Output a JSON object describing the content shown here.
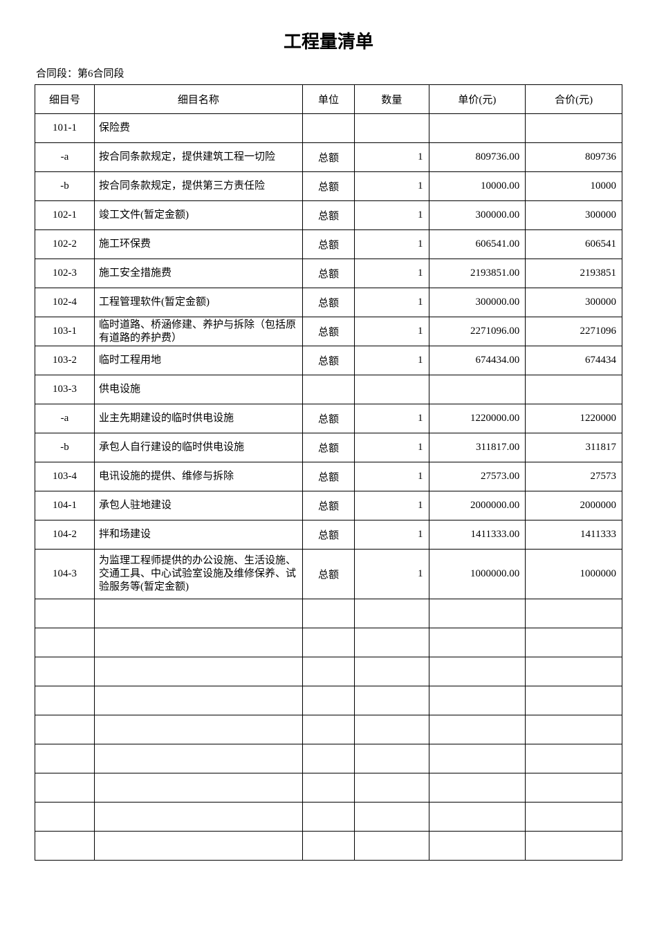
{
  "title": "工程量清单",
  "subtitle": "合同段：第6合同段",
  "headers": {
    "id": "细目号",
    "name": "细目名称",
    "unit": "单位",
    "qty": "数量",
    "price": "单价(元)",
    "total": "合价(元)"
  },
  "rows": [
    {
      "id": "101-1",
      "name": "保险费",
      "unit": "",
      "qty": "",
      "price": "",
      "total": ""
    },
    {
      "id": "-a",
      "name": "按合同条款规定，提供建筑工程一切险",
      "unit": "总额",
      "qty": "1",
      "price": "809736.00",
      "total": "809736"
    },
    {
      "id": "-b",
      "name": "按合同条款规定，提供第三方责任险",
      "unit": "总额",
      "qty": "1",
      "price": "10000.00",
      "total": "10000"
    },
    {
      "id": "102-1",
      "name": "竣工文件(暂定金额)",
      "unit": "总额",
      "qty": "1",
      "price": "300000.00",
      "total": "300000"
    },
    {
      "id": "102-2",
      "name": "施工环保费",
      "unit": "总额",
      "qty": "1",
      "price": "606541.00",
      "total": "606541"
    },
    {
      "id": "102-3",
      "name": "施工安全措施费",
      "unit": "总额",
      "qty": "1",
      "price": "2193851.00",
      "total": "2193851"
    },
    {
      "id": "102-4",
      "name": "工程管理软件(暂定金额)",
      "unit": "总额",
      "qty": "1",
      "price": "300000.00",
      "total": "300000"
    },
    {
      "id": "103-1",
      "name": "临时道路、桥涵修建、养护与拆除（包括原有道路的养护费）",
      "unit": "总额",
      "qty": "1",
      "price": "2271096.00",
      "total": "2271096"
    },
    {
      "id": "103-2",
      "name": "临时工程用地",
      "unit": "总额",
      "qty": "1",
      "price": "674434.00",
      "total": "674434"
    },
    {
      "id": "103-3",
      "name": "供电设施",
      "unit": "",
      "qty": "",
      "price": "",
      "total": ""
    },
    {
      "id": "-a",
      "name": "业主先期建设的临时供电设施",
      "unit": "总额",
      "qty": "1",
      "price": "1220000.00",
      "total": "1220000"
    },
    {
      "id": "-b",
      "name": "承包人自行建设的临时供电设施",
      "unit": "总额",
      "qty": "1",
      "price": "311817.00",
      "total": "311817"
    },
    {
      "id": "103-4",
      "name": "电讯设施的提供、维修与拆除",
      "unit": "总额",
      "qty": "1",
      "price": "27573.00",
      "total": "27573"
    },
    {
      "id": "104-1",
      "name": "承包人驻地建设",
      "unit": "总额",
      "qty": "1",
      "price": "2000000.00",
      "total": "2000000"
    },
    {
      "id": "104-2",
      "name": "拌和场建设",
      "unit": "总额",
      "qty": "1",
      "price": "1411333.00",
      "total": "1411333"
    },
    {
      "id": "104-3",
      "name": "为监理工程师提供的办公设施、生活设施、交通工具、中心试验室设施及维修保养、试验服务等(暂定金额)",
      "unit": "总额",
      "qty": "1",
      "price": "1000000.00",
      "total": "1000000",
      "tall": true
    },
    {
      "id": "",
      "name": "",
      "unit": "",
      "qty": "",
      "price": "",
      "total": ""
    },
    {
      "id": "",
      "name": "",
      "unit": "",
      "qty": "",
      "price": "",
      "total": ""
    },
    {
      "id": "",
      "name": "",
      "unit": "",
      "qty": "",
      "price": "",
      "total": ""
    },
    {
      "id": "",
      "name": "",
      "unit": "",
      "qty": "",
      "price": "",
      "total": ""
    },
    {
      "id": "",
      "name": "",
      "unit": "",
      "qty": "",
      "price": "",
      "total": ""
    },
    {
      "id": "",
      "name": "",
      "unit": "",
      "qty": "",
      "price": "",
      "total": ""
    },
    {
      "id": "",
      "name": "",
      "unit": "",
      "qty": "",
      "price": "",
      "total": ""
    },
    {
      "id": "",
      "name": "",
      "unit": "",
      "qty": "",
      "price": "",
      "total": ""
    },
    {
      "id": "",
      "name": "",
      "unit": "",
      "qty": "",
      "price": "",
      "total": ""
    }
  ]
}
